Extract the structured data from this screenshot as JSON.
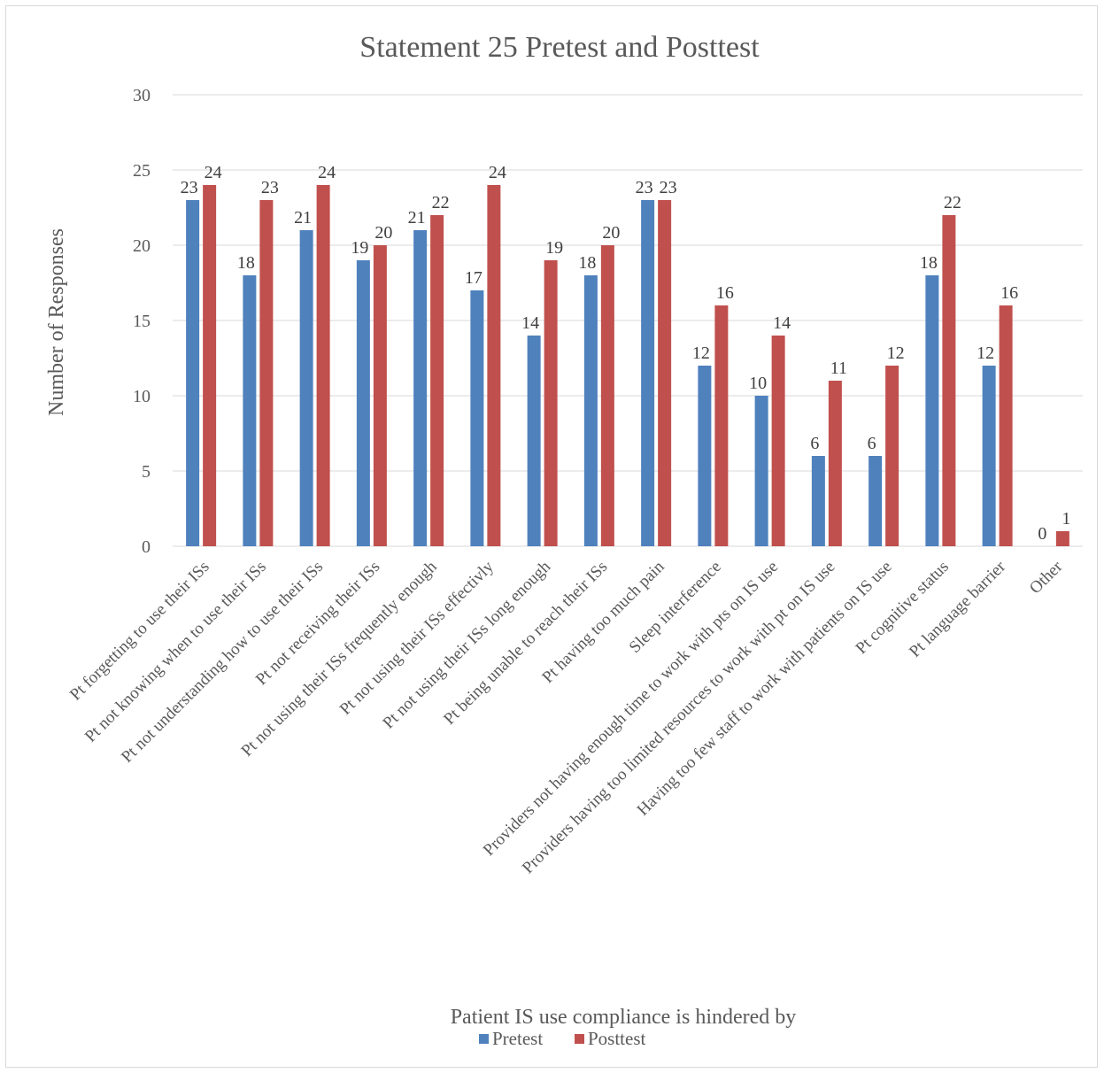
{
  "chart_data": {
    "type": "bar",
    "title": "Statement 25 Pretest and Posttest",
    "xlabel": "Patient IS use compliance is hindered by",
    "ylabel": "Number of Responses",
    "ylim": [
      0,
      30
    ],
    "yticks": [
      0,
      5,
      10,
      15,
      20,
      25,
      30
    ],
    "grid": true,
    "legend_position": "bottom",
    "categories": [
      "Pt forgetting to use their ISs",
      "Pt not knowing when to use their ISs",
      "Pt not understanding how to use their ISs",
      "Pt not receiving their ISs",
      "Pt not using their ISs frequently enough",
      "Pt not using their ISs effectivly",
      "Pt not using their ISs long enough",
      "Pt being unable to reach their ISs",
      "Pt having too much pain",
      "Sleep interference",
      "Providers not having enough time to work with pts on IS use",
      "Providers having too limited resources to work with pt on IS use",
      "Having too few staff to work with patients on IS use",
      "Pt cognitive status",
      "Pt language barrier",
      "Other"
    ],
    "series": [
      {
        "name": "Pretest",
        "color": "#4f81bd",
        "values": [
          23,
          18,
          21,
          19,
          21,
          17,
          14,
          18,
          23,
          12,
          10,
          6,
          6,
          18,
          12,
          0
        ]
      },
      {
        "name": "Posttest",
        "color": "#c0504d",
        "values": [
          24,
          23,
          24,
          20,
          22,
          24,
          19,
          20,
          23,
          16,
          14,
          11,
          12,
          22,
          16,
          1
        ]
      }
    ]
  }
}
